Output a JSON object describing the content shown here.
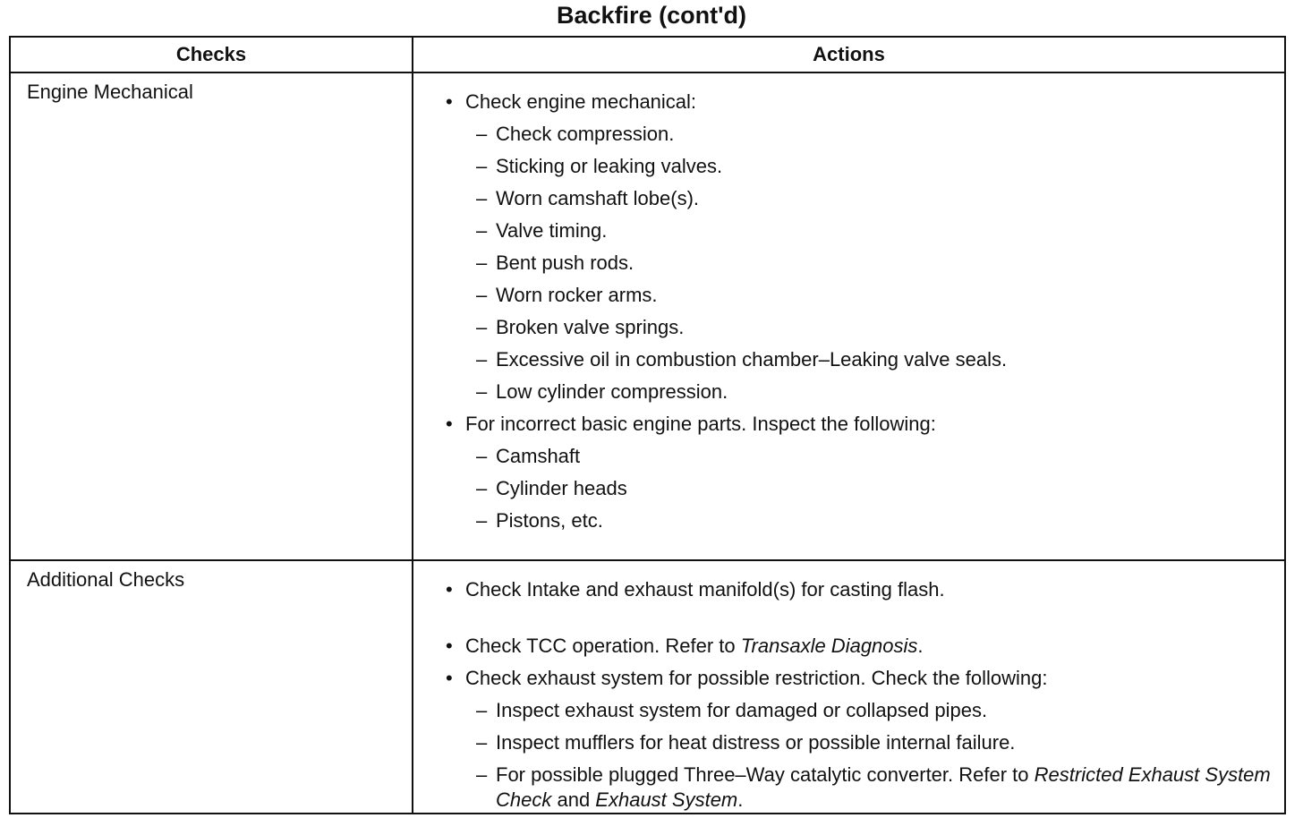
{
  "title": "Backfire (cont'd)",
  "headers": {
    "checks": "Checks",
    "actions": "Actions"
  },
  "rows": [
    {
      "check": "Engine Mechanical",
      "actions": [
        {
          "type": "bullet",
          "segments": [
            {
              "t": "Check engine mechanical:"
            }
          ]
        },
        {
          "type": "dash",
          "segments": [
            {
              "t": "Check compression."
            }
          ]
        },
        {
          "type": "dash",
          "segments": [
            {
              "t": "Sticking or leaking valves."
            }
          ]
        },
        {
          "type": "dash",
          "segments": [
            {
              "t": "Worn camshaft lobe(s)."
            }
          ]
        },
        {
          "type": "dash",
          "segments": [
            {
              "t": "Valve timing."
            }
          ]
        },
        {
          "type": "dash",
          "segments": [
            {
              "t": "Bent push rods."
            }
          ]
        },
        {
          "type": "dash",
          "segments": [
            {
              "t": "Worn rocker arms."
            }
          ]
        },
        {
          "type": "dash",
          "segments": [
            {
              "t": "Broken valve springs."
            }
          ]
        },
        {
          "type": "dash",
          "segments": [
            {
              "t": "Excessive oil in combustion chamber–Leaking valve seals."
            }
          ]
        },
        {
          "type": "dash",
          "segments": [
            {
              "t": "Low cylinder compression."
            }
          ]
        },
        {
          "type": "bullet",
          "segments": [
            {
              "t": "For incorrect basic engine parts. Inspect the following:"
            }
          ]
        },
        {
          "type": "dash",
          "segments": [
            {
              "t": "Camshaft"
            }
          ]
        },
        {
          "type": "dash",
          "segments": [
            {
              "t": "Cylinder heads"
            }
          ]
        },
        {
          "type": "dash",
          "segments": [
            {
              "t": "Pistons, etc."
            }
          ]
        }
      ]
    },
    {
      "check": "Additional Checks",
      "actions": [
        {
          "type": "bullet",
          "segments": [
            {
              "t": "Check Intake and exhaust manifold(s) for casting flash."
            }
          ]
        },
        {
          "type": "bullet",
          "gap": true,
          "segments": [
            {
              "t": "Check TCC operation. Refer to "
            },
            {
              "t": "Transaxle Diagnosis",
              "i": true
            },
            {
              "t": "."
            }
          ]
        },
        {
          "type": "bullet",
          "segments": [
            {
              "t": "Check exhaust system for possible restriction. Check the following:"
            }
          ]
        },
        {
          "type": "dash",
          "segments": [
            {
              "t": "Inspect exhaust system for damaged or collapsed pipes."
            }
          ]
        },
        {
          "type": "dash",
          "segments": [
            {
              "t": "Inspect mufflers for heat distress or possible internal failure."
            }
          ]
        },
        {
          "type": "dash",
          "wrap": true,
          "segments": [
            {
              "t": "For possible plugged Three–Way catalytic converter. Refer to "
            },
            {
              "t": "Restricted Exhaust System Check",
              "i": true
            },
            {
              "t": " and "
            },
            {
              "t": "Exhaust System",
              "i": true
            },
            {
              "t": "."
            }
          ]
        }
      ]
    }
  ]
}
